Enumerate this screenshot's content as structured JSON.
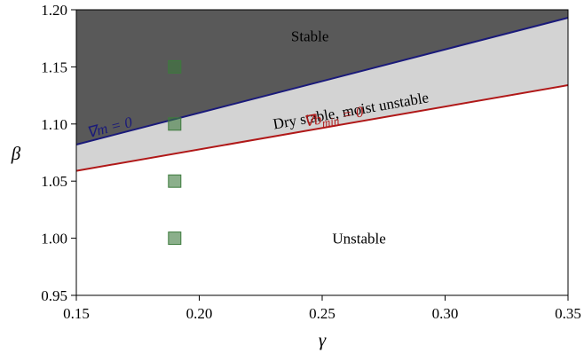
{
  "chart_data": {
    "type": "area",
    "xlabel": "γ",
    "ylabel": "β",
    "xlim": [
      0.15,
      0.35
    ],
    "ylim": [
      0.95,
      1.2
    ],
    "x_ticks": [
      "0.15",
      "0.20",
      "0.25",
      "0.30",
      "0.35"
    ],
    "y_ticks": [
      "0.95",
      "1.00",
      "1.05",
      "1.10",
      "1.15",
      "1.20"
    ],
    "grid": false,
    "lines": [
      {
        "name": "∇m = 0",
        "x": [
          0.15,
          0.35
        ],
        "y": [
          1.082,
          1.193
        ],
        "color": "#1a1a7a"
      },
      {
        "name": "∇b_min = 0",
        "x": [
          0.15,
          0.35
        ],
        "y": [
          1.059,
          1.134
        ],
        "color": "#b01818"
      }
    ],
    "regions": [
      {
        "label": "Stable",
        "x": 0.245,
        "y": 1.177,
        "fill": "#595959"
      },
      {
        "label": "Dry stable, moist unstable",
        "x": 0.262,
        "y": 1.112,
        "fill": "#d3d3d3"
      },
      {
        "label": "Unstable",
        "x": 0.265,
        "y": 1.0,
        "fill": "#ffffff"
      }
    ],
    "points": {
      "color": "#3d7a3d",
      "x": [
        0.19,
        0.19,
        0.19,
        0.19
      ],
      "y": [
        1.15,
        1.1,
        1.05,
        1.0
      ]
    }
  }
}
